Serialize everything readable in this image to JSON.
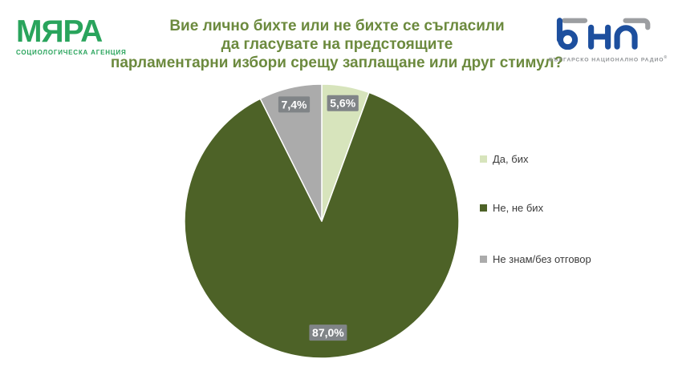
{
  "header": {
    "myara_logo": {
      "name": "МЯРА",
      "subtitle": "СОЦИОЛОГИЧЕСКА АГЕНЦИЯ",
      "color": "#29A45C"
    },
    "title_line1": "Вие лично бихте или не бихте се съгласили",
    "title_line2": "да гласувате на предстоящите",
    "title_line3": "парламентарни избори срещу заплащане или друг стимул?",
    "bnr_logo": {
      "subtitle": "БЪЛГАРСКО НАЦИОНАЛНО РАДИО",
      "reg_mark": "®",
      "blue": "#1D4F9E",
      "gray": "#9C9EA1"
    }
  },
  "chart_data": {
    "type": "pie",
    "title": "Вие лично бихте или не бихте се съгласили да гласувате на предстоящите парламентарни избори срещу заплащане или друг стимул?",
    "categories": [
      "Да, бих",
      "Не, не бих",
      "Не знам/без отговор"
    ],
    "values": [
      5.6,
      87.0,
      7.4
    ],
    "data_labels": [
      "5,6%",
      "87,0%",
      "7,4%"
    ],
    "colors": [
      "#D7E4BC",
      "#4D6227",
      "#ABABAB"
    ],
    "start_angle_deg": 0,
    "direction": "clockwise",
    "legend_position": "right",
    "data_label_bg": "#808487",
    "data_label_color": "#FFFFFF",
    "slice_border_color": "#FFFFFF"
  }
}
